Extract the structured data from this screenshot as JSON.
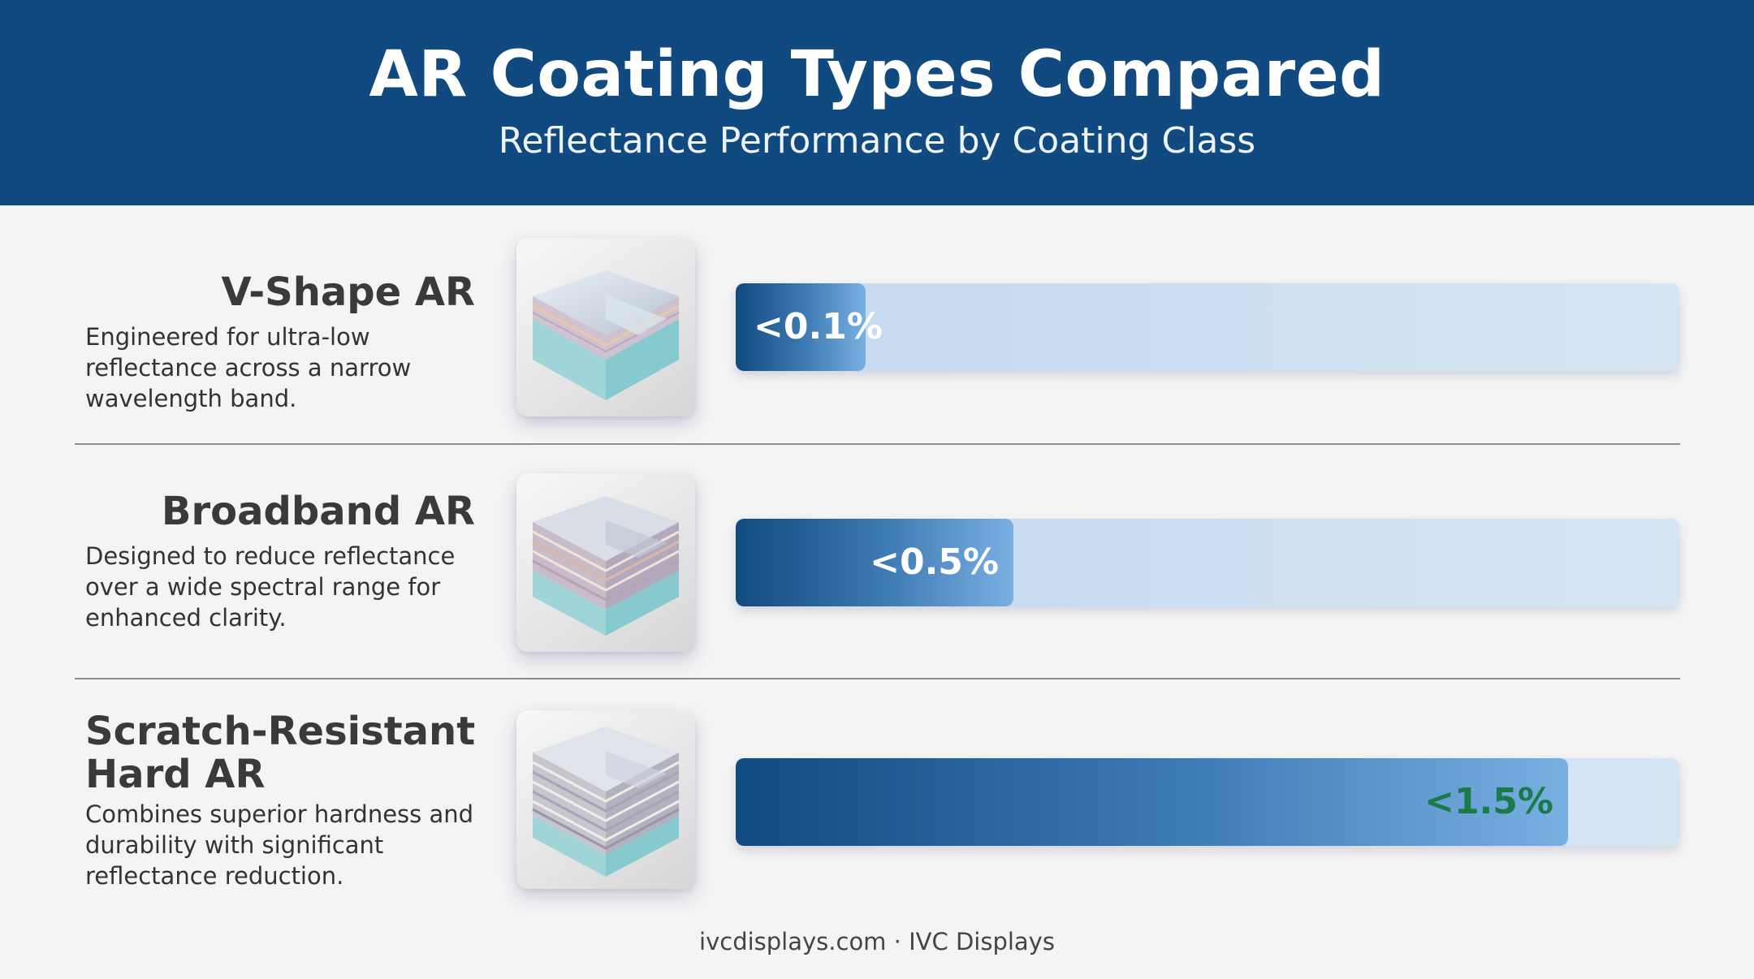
{
  "header": {
    "title": "AR Coating Types Compared",
    "subtitle": "Reflectance Performance by Coating Class"
  },
  "chart_data": {
    "type": "bar",
    "orientation": "horizontal",
    "title": "AR Coating Types Compared",
    "subtitle": "Reflectance Performance by Coating Class",
    "categories": [
      "V-Shape AR",
      "Broadband AR",
      "Scratch-Resistant Hard AR"
    ],
    "values": [
      0.1,
      0.5,
      1.5
    ],
    "value_labels": [
      "<0.1%",
      "<0.5%",
      "<1.5%"
    ],
    "unit": "%",
    "xlim": [
      0,
      1.7
    ],
    "grid": false,
    "legend": "none"
  },
  "rows": [
    {
      "title": "V-Shape AR",
      "description": "Engineered for ultra-low reflectance across a narrow wavelength band.",
      "icon": "glass-layer-stack-icon",
      "label_color": "#ffffff"
    },
    {
      "title": "Broadband AR",
      "description": "Designed to reduce reflectance over a wide spectral range for enhanced clarity.",
      "icon": "glass-layer-stack-icon",
      "label_color": "#ffffff"
    },
    {
      "title_line1": "Scratch-Resistant",
      "title_line2": "Hard AR",
      "description": "Combines superior hardness and durability with significant reflectance reduction.",
      "icon": "glass-layer-stack-icon",
      "label_color": "#1b7a4c"
    }
  ],
  "colors": {
    "header_bg": "#114a80",
    "bar_dark": "#114a80",
    "bar_light": "#79b0e2",
    "track": "#c3d8ef",
    "page_bg": "#f3f4f3"
  },
  "footer": {
    "text": "ivcdisplays.com · IVC Displays"
  }
}
